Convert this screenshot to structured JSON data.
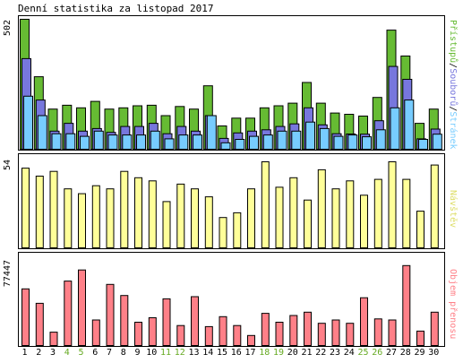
{
  "title": "Denní statistika za listopad 2017",
  "colors": {
    "pristupu": "#66bb33",
    "souboru": "#7777dd",
    "stranek": "#77ccff",
    "navstev": "#ffff99",
    "prenos": "#ff8088",
    "day_weekday": "#000000",
    "day_weekend": "#66aa22",
    "sidelabel_visits": "#dddd66"
  },
  "panels": {
    "access": {
      "max_label": "502",
      "legend": {
        "pristupu": "Přístupů",
        "souboru": "Souborů",
        "stranek": "Stránek",
        "sep": "/"
      }
    },
    "visits": {
      "max_label": "54",
      "side_label": "Návštěv"
    },
    "traffic": {
      "max_label": "77447",
      "side_label": "Objem přenosu"
    }
  },
  "chart_data": [
    {
      "type": "bar",
      "title": "",
      "categories": [
        "1",
        "2",
        "3",
        "4",
        "5",
        "6",
        "7",
        "8",
        "9",
        "10",
        "11",
        "12",
        "13",
        "14",
        "15",
        "16",
        "17",
        "18",
        "19",
        "20",
        "21",
        "22",
        "23",
        "24",
        "25",
        "26",
        "27",
        "28",
        "29",
        "30"
      ],
      "ylim": [
        0,
        502
      ],
      "series": [
        {
          "name": "Přístupů",
          "values": [
            502,
            280,
            155,
            170,
            160,
            185,
            155,
            160,
            168,
            170,
            130,
            165,
            155,
            245,
            90,
            120,
            120,
            160,
            168,
            178,
            258,
            178,
            140,
            135,
            128,
            200,
            460,
            360,
            100,
            155
          ]
        },
        {
          "name": "Souborů",
          "values": [
            350,
            190,
            70,
            100,
            70,
            80,
            65,
            88,
            88,
            100,
            60,
            88,
            70,
            130,
            42,
            63,
            70,
            75,
            88,
            98,
            160,
            94,
            60,
            59,
            58,
            110,
            320,
            270,
            40,
            78
          ]
        },
        {
          "name": "Stránek",
          "values": [
            205,
            130,
            60,
            60,
            50,
            70,
            55,
            55,
            55,
            70,
            40,
            55,
            55,
            130,
            25,
            38,
            50,
            55,
            70,
            70,
            105,
            80,
            50,
            55,
            48,
            75,
            160,
            190,
            38,
            58
          ]
        }
      ]
    },
    {
      "type": "bar",
      "title": "",
      "categories": [
        "1",
        "2",
        "3",
        "4",
        "5",
        "6",
        "7",
        "8",
        "9",
        "10",
        "11",
        "12",
        "13",
        "14",
        "15",
        "16",
        "17",
        "18",
        "19",
        "20",
        "21",
        "22",
        "23",
        "24",
        "25",
        "26",
        "27",
        "28",
        "29",
        "30"
      ],
      "ylim": [
        0,
        54
      ],
      "series": [
        {
          "name": "Návštěv",
          "values": [
            50,
            45,
            48,
            37,
            34,
            39,
            37,
            48,
            44,
            42,
            29,
            40,
            37,
            32,
            19,
            22,
            37,
            54,
            38,
            44,
            30,
            49,
            37,
            42,
            33,
            43,
            54,
            43,
            23,
            52
          ]
        }
      ]
    },
    {
      "type": "bar",
      "title": "",
      "categories": [
        "1",
        "2",
        "3",
        "4",
        "5",
        "6",
        "7",
        "8",
        "9",
        "10",
        "11",
        "12",
        "13",
        "14",
        "15",
        "16",
        "17",
        "18",
        "19",
        "20",
        "21",
        "22",
        "23",
        "24",
        "25",
        "26",
        "27",
        "28",
        "29",
        "30"
      ],
      "ylim": [
        0,
        77447
      ],
      "series": [
        {
          "name": "Objem přenosu",
          "values": [
            51000,
            38000,
            12000,
            58000,
            68000,
            23000,
            55000,
            45000,
            21000,
            25000,
            42000,
            18000,
            44000,
            17000,
            26000,
            18000,
            9000,
            29000,
            21000,
            27000,
            30000,
            20000,
            23000,
            20000,
            43000,
            24000,
            23000,
            72000,
            13000,
            30000
          ]
        }
      ]
    }
  ],
  "days": [
    {
      "label": "1",
      "weekend": false
    },
    {
      "label": "2",
      "weekend": false
    },
    {
      "label": "3",
      "weekend": false
    },
    {
      "label": "4",
      "weekend": true
    },
    {
      "label": "5",
      "weekend": true
    },
    {
      "label": "6",
      "weekend": false
    },
    {
      "label": "7",
      "weekend": false
    },
    {
      "label": "8",
      "weekend": false
    },
    {
      "label": "9",
      "weekend": false
    },
    {
      "label": "10",
      "weekend": false
    },
    {
      "label": "11",
      "weekend": true
    },
    {
      "label": "12",
      "weekend": true
    },
    {
      "label": "13",
      "weekend": false
    },
    {
      "label": "14",
      "weekend": false
    },
    {
      "label": "15",
      "weekend": false
    },
    {
      "label": "16",
      "weekend": false
    },
    {
      "label": "17",
      "weekend": false
    },
    {
      "label": "18",
      "weekend": true
    },
    {
      "label": "19",
      "weekend": true
    },
    {
      "label": "20",
      "weekend": false
    },
    {
      "label": "21",
      "weekend": false
    },
    {
      "label": "22",
      "weekend": false
    },
    {
      "label": "23",
      "weekend": false
    },
    {
      "label": "24",
      "weekend": false
    },
    {
      "label": "25",
      "weekend": true
    },
    {
      "label": "26",
      "weekend": true
    },
    {
      "label": "27",
      "weekend": false
    },
    {
      "label": "28",
      "weekend": false
    },
    {
      "label": "29",
      "weekend": false
    },
    {
      "label": "30",
      "weekend": false
    }
  ]
}
